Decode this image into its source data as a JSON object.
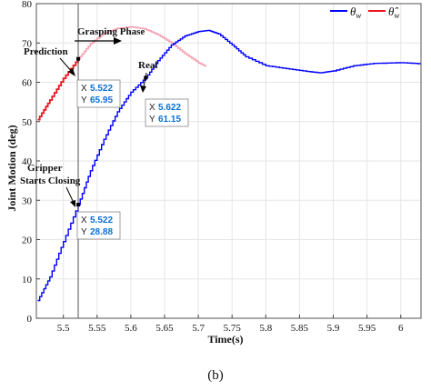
{
  "chart_data": {
    "type": "line",
    "xlabel": "Time(s)",
    "ylabel": "Joint Motion (deg)",
    "xlim": [
      5.46,
      6.03
    ],
    "ylim": [
      0,
      80
    ],
    "xticks": [
      5.5,
      5.55,
      5.6,
      5.65,
      5.7,
      5.75,
      5.8,
      5.85,
      5.9,
      5.95,
      6
    ],
    "xtick_labels": [
      "5.5",
      "5.55",
      "5.6",
      "5.65",
      "5.7",
      "5.75",
      "5.8",
      "5.85",
      "5.9",
      "5.95",
      "6"
    ],
    "yticks": [
      0,
      10,
      20,
      30,
      40,
      50,
      60,
      70,
      80
    ],
    "ytick_labels": [
      "0",
      "10",
      "20",
      "30",
      "40",
      "50",
      "60",
      "70",
      "80"
    ],
    "grid": true,
    "legend_position": "top-right",
    "legend": [
      "θ_w",
      "θ̂_w"
    ],
    "series": [
      {
        "name": "θ_w",
        "color": "#0000ff",
        "style": "stair",
        "x": [
          5.462,
          5.48,
          5.5,
          5.522,
          5.54,
          5.56,
          5.58,
          5.6,
          5.622,
          5.64,
          5.66,
          5.68,
          5.7,
          5.715,
          5.73,
          5.75,
          5.77,
          5.8,
          5.83,
          5.86,
          5.88,
          5.9,
          5.93,
          5.96,
          6.0,
          6.03
        ],
        "y": [
          4.5,
          10.5,
          19.5,
          28.88,
          37.5,
          45.5,
          52.5,
          57.5,
          61.15,
          65.5,
          69.5,
          71.8,
          72.9,
          73.2,
          72.3,
          69.5,
          66.5,
          64.2,
          63.5,
          62.8,
          62.4,
          62.9,
          64.2,
          64.8,
          65.0,
          64.7
        ]
      },
      {
        "name": "θ̂_w",
        "color": "#e8141e",
        "color_light": "#f4a3b4",
        "style": "stair",
        "x": [
          5.462,
          5.48,
          5.5,
          5.522,
          5.54,
          5.56,
          5.58,
          5.6,
          5.62,
          5.64,
          5.66,
          5.68,
          5.7,
          5.712
        ],
        "y": [
          50.5,
          55.5,
          61.0,
          65.95,
          69.8,
          72.5,
          73.7,
          74.1,
          73.6,
          72.1,
          70.0,
          67.3,
          65.0,
          64.0
        ]
      }
    ],
    "annotations": {
      "grasping_phase": "Grasping Phase",
      "prediction": "Prediction",
      "real": "Real",
      "gripper_line1": "Gripper",
      "gripper_line2": "Starts Closing"
    },
    "datatips": [
      {
        "x_label": "X",
        "x_value": "5.522",
        "y_label": "Y",
        "y_value": "65.95",
        "x": 5.522,
        "y": 65.95
      },
      {
        "x_label": "X",
        "x_value": "5.622",
        "y_label": "Y",
        "y_value": "61.15",
        "x": 5.622,
        "y": 61.15
      },
      {
        "x_label": "X",
        "x_value": "5.522",
        "y_label": "Y",
        "y_value": "28.88",
        "x": 5.522,
        "y": 28.88
      }
    ],
    "vertical_marker_x": 5.522
  },
  "caption": "(b)"
}
